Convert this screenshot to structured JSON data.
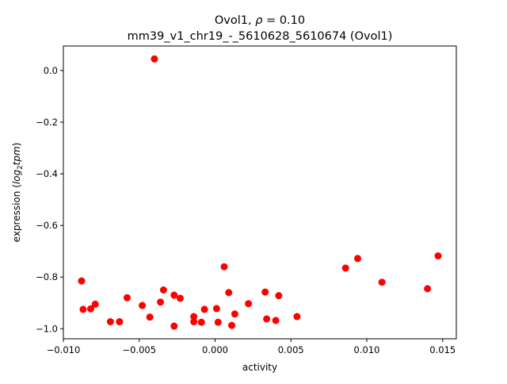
{
  "chart_data": {
    "type": "scatter",
    "title_line1_prefix": "Ovol1, ",
    "title_line1_rho": "ρ",
    "title_line1_suffix": " = 0.10",
    "title_line2": "mm39_v1_chr19_-_5610628_5610674 (Ovol1)",
    "xlabel": "activity",
    "ylabel_prefix": "expression (",
    "ylabel_log": "log",
    "ylabel_sub": "2",
    "ylabel_tpm": "tpm",
    "ylabel_suffix": ")",
    "xlim": [
      -0.01,
      0.0159
    ],
    "ylim": [
      -1.039,
      0.095
    ],
    "x_ticks": [
      {
        "value": -0.01,
        "label": "−0.010"
      },
      {
        "value": -0.005,
        "label": "−0.005"
      },
      {
        "value": 0.0,
        "label": "0.000"
      },
      {
        "value": 0.005,
        "label": "0.005"
      },
      {
        "value": 0.01,
        "label": "0.010"
      },
      {
        "value": 0.015,
        "label": "0.015"
      }
    ],
    "y_ticks": [
      {
        "value": 0.0,
        "label": "0.0"
      },
      {
        "value": -0.2,
        "label": "−0.2"
      },
      {
        "value": -0.4,
        "label": "−0.4"
      },
      {
        "value": -0.6,
        "label": "−0.6"
      },
      {
        "value": -0.8,
        "label": "−0.8"
      },
      {
        "value": -1.0,
        "label": "−1.0"
      }
    ],
    "point_color": "#ff0000",
    "grid": false,
    "points": [
      {
        "x": -0.004,
        "y": 0.045
      },
      {
        "x": -0.0088,
        "y": -0.815
      },
      {
        "x": -0.0087,
        "y": -0.925
      },
      {
        "x": -0.0082,
        "y": -0.923
      },
      {
        "x": -0.0079,
        "y": -0.905
      },
      {
        "x": -0.0069,
        "y": -0.973
      },
      {
        "x": -0.0063,
        "y": -0.973
      },
      {
        "x": -0.0058,
        "y": -0.88
      },
      {
        "x": -0.0048,
        "y": -0.91
      },
      {
        "x": -0.0043,
        "y": -0.955
      },
      {
        "x": -0.0036,
        "y": -0.897
      },
      {
        "x": -0.0034,
        "y": -0.85
      },
      {
        "x": -0.0027,
        "y": -0.87
      },
      {
        "x": -0.0027,
        "y": -0.99
      },
      {
        "x": -0.0023,
        "y": -0.882
      },
      {
        "x": -0.0014,
        "y": -0.953
      },
      {
        "x": -0.0014,
        "y": -0.973
      },
      {
        "x": -0.0009,
        "y": -0.975
      },
      {
        "x": -0.0007,
        "y": -0.925
      },
      {
        "x": 0.0001,
        "y": -0.922
      },
      {
        "x": 0.0002,
        "y": -0.975
      },
      {
        "x": 0.0006,
        "y": -0.76
      },
      {
        "x": 0.0009,
        "y": -0.86
      },
      {
        "x": 0.0011,
        "y": -0.987
      },
      {
        "x": 0.0013,
        "y": -0.943
      },
      {
        "x": 0.0022,
        "y": -0.903
      },
      {
        "x": 0.0033,
        "y": -0.858
      },
      {
        "x": 0.0034,
        "y": -0.962
      },
      {
        "x": 0.004,
        "y": -0.968
      },
      {
        "x": 0.0042,
        "y": -0.872
      },
      {
        "x": 0.0054,
        "y": -0.953
      },
      {
        "x": 0.0086,
        "y": -0.765
      },
      {
        "x": 0.0094,
        "y": -0.728
      },
      {
        "x": 0.011,
        "y": -0.82
      },
      {
        "x": 0.014,
        "y": -0.845
      },
      {
        "x": 0.0147,
        "y": -0.718
      }
    ]
  }
}
